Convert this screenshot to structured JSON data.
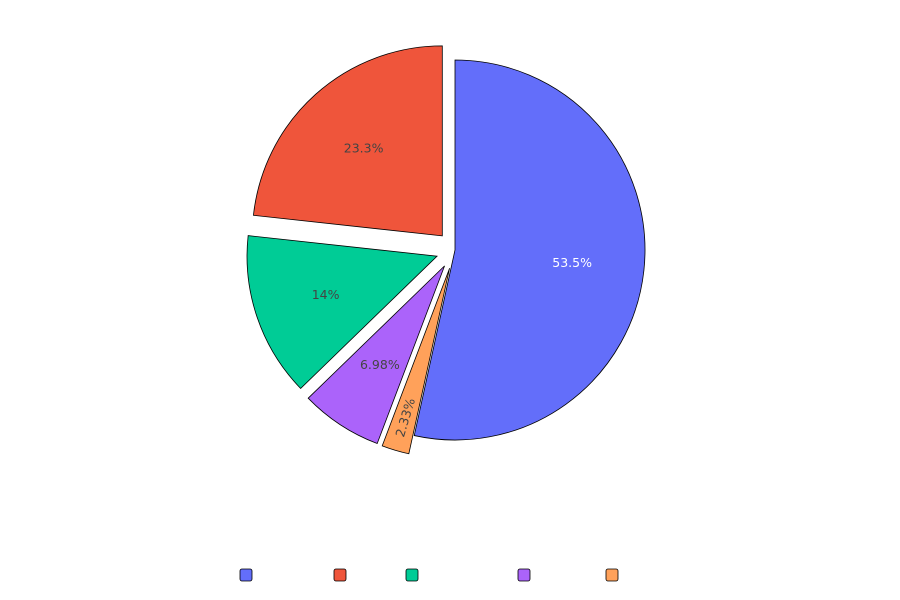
{
  "chart_data": {
    "type": "pie",
    "title": "",
    "slices": [
      {
        "value": 53.5,
        "label": "53.5%",
        "color": "#636efa",
        "label_color": "#ffffff",
        "pull": 0.0,
        "rotate_label": false
      },
      {
        "value": 2.33,
        "label": "2.33%",
        "color": "#ffa15a",
        "label_color": "#444444",
        "pull": 0.1,
        "rotate_label": true
      },
      {
        "value": 6.98,
        "label": "6.98%",
        "color": "#ab63fa",
        "label_color": "#444444",
        "pull": 0.1,
        "rotate_label": false
      },
      {
        "value": 14.0,
        "label": "14%",
        "color": "#00cc96",
        "label_color": "#444444",
        "pull": 0.1,
        "rotate_label": false
      },
      {
        "value": 23.3,
        "label": "23.3%",
        "color": "#ef553b",
        "label_color": "#444444",
        "pull": 0.1,
        "rotate_label": false
      }
    ],
    "legend": {
      "placement": "bottom",
      "colors": [
        "#636efa",
        "#ef553b",
        "#00cc96",
        "#ab63fa",
        "#ffa15a"
      ]
    }
  }
}
